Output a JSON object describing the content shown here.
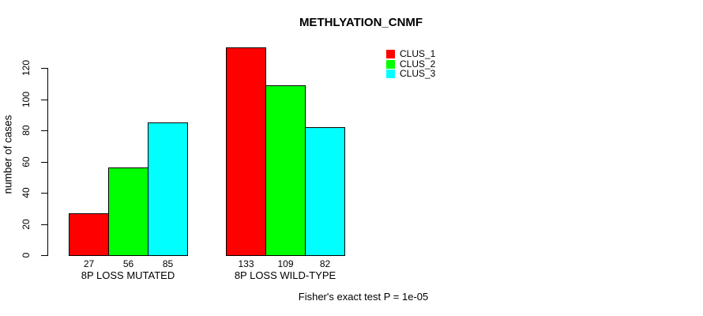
{
  "chart_data": {
    "type": "bar",
    "title": "METHLYATION_CNMF",
    "ylabel": "number of cases",
    "xlabel": "",
    "categories": [
      "8P LOSS MUTATED",
      "8P LOSS WILD-TYPE"
    ],
    "series": [
      {
        "name": "CLUS_1",
        "color": "#ff0000",
        "values": [
          27,
          133
        ]
      },
      {
        "name": "CLUS_2",
        "color": "#00ff00",
        "values": [
          56,
          109
        ]
      },
      {
        "name": "CLUS_3",
        "color": "#00ffff",
        "values": [
          85,
          82
        ]
      }
    ],
    "yticks": [
      0,
      20,
      40,
      60,
      80,
      100,
      120
    ],
    "ylim": [
      0,
      140
    ],
    "grid": false,
    "legend_position": "top-right",
    "bar_value_labels_shown": true,
    "annotation": "Fisher's exact test P = 1e-05"
  },
  "colors": {
    "axis": "#000000",
    "background": "#ffffff",
    "bar_border": "#000000"
  }
}
